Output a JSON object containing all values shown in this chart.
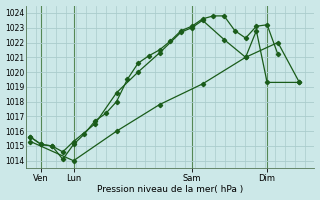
{
  "background_color": "#cce8e8",
  "plot_bg_color": "#cce8e8",
  "grid_color": "#aacccc",
  "line_color": "#1a5c1a",
  "ylabel": "Pression niveau de la mer( hPa )",
  "ylim": [
    1013.5,
    1024.5
  ],
  "yticks": [
    1014,
    1015,
    1016,
    1017,
    1018,
    1019,
    1020,
    1021,
    1022,
    1023,
    1024
  ],
  "xlim": [
    -0.2,
    13.2
  ],
  "xtick_labels": [
    "Ven",
    "Lun",
    "Sam",
    "Dim"
  ],
  "xtick_positions": [
    0.5,
    2.0,
    7.5,
    11.0
  ],
  "vline_positions": [
    0.5,
    2.0,
    7.5,
    11.0
  ],
  "series1_x": [
    0.0,
    0.5,
    1.0,
    1.5,
    2.0,
    2.5,
    3.0,
    3.5,
    4.0,
    4.5,
    5.0,
    5.5,
    6.0,
    6.5,
    7.0,
    7.5,
    8.0,
    8.5,
    9.0,
    9.5,
    10.0,
    10.5,
    11.0,
    11.5
  ],
  "series1_y": [
    1015.6,
    1015.1,
    1015.0,
    1014.1,
    1015.1,
    1015.8,
    1016.7,
    1017.2,
    1018.0,
    1019.5,
    1020.6,
    1021.1,
    1021.5,
    1022.1,
    1022.8,
    1023.1,
    1023.6,
    1023.8,
    1023.8,
    1022.8,
    1022.3,
    1023.1,
    1023.2,
    1021.2
  ],
  "series2_x": [
    0.0,
    0.5,
    1.0,
    1.5,
    2.0,
    3.0,
    4.0,
    5.0,
    6.0,
    7.0,
    7.5,
    8.0,
    9.0,
    10.0,
    10.5,
    11.0,
    12.5
  ],
  "series2_y": [
    1015.6,
    1015.1,
    1015.0,
    1014.6,
    1015.3,
    1016.5,
    1018.6,
    1020.0,
    1021.3,
    1022.7,
    1023.0,
    1023.5,
    1022.2,
    1021.0,
    1022.8,
    1019.3,
    1019.3
  ],
  "series3_x": [
    0.0,
    2.0,
    4.0,
    6.0,
    8.0,
    10.0,
    11.5,
    12.5
  ],
  "series3_y": [
    1015.3,
    1014.0,
    1016.0,
    1017.8,
    1019.2,
    1021.0,
    1022.0,
    1019.3
  ]
}
